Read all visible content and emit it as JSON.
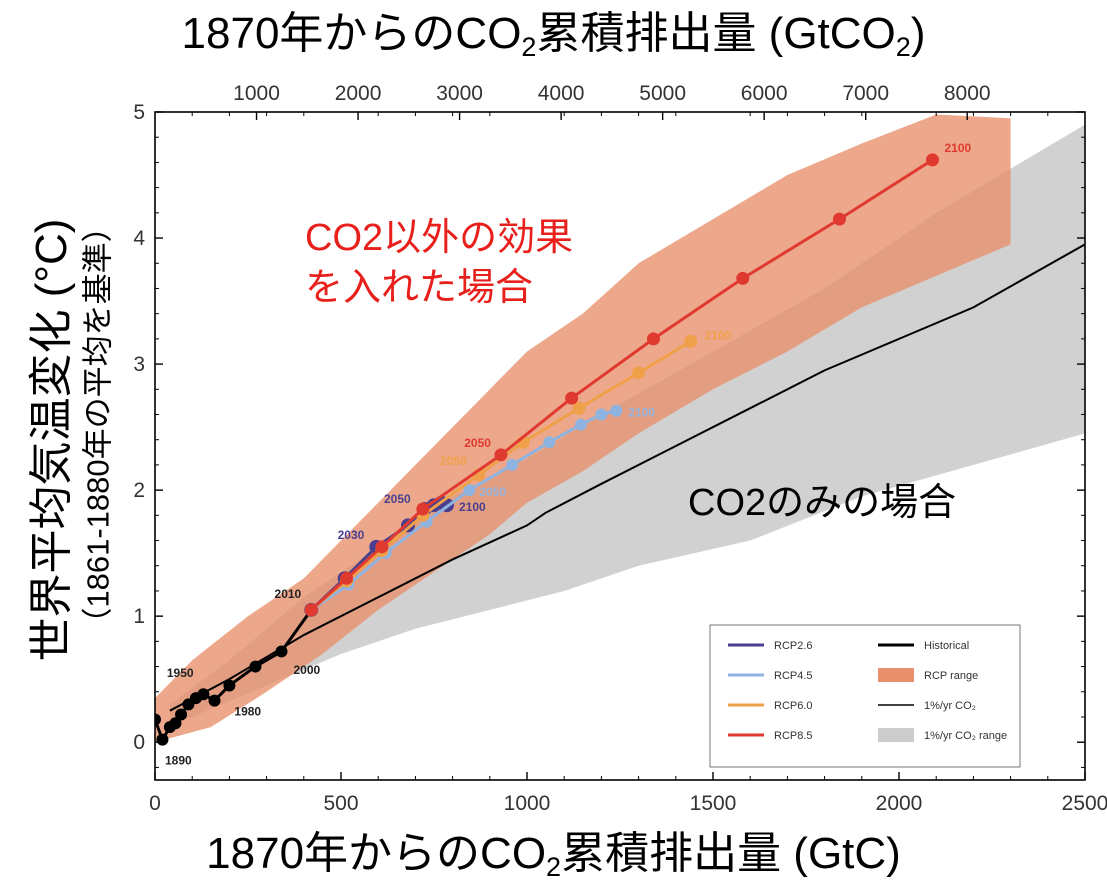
{
  "chart_data": {
    "type": "line",
    "title_top_axis": "1870年からのCO₂累積排出量 (GtCO₂)",
    "title_top_axis_parts": {
      "pre": "1870年からのCO",
      "sub": "2",
      "post": "累積排出量 (GtCO",
      "sub2": "2",
      "end": ")"
    },
    "xlabel_parts": {
      "pre": "1870年からのCO",
      "sub": "2",
      "post": "累積排出量 (GtC)"
    },
    "xlabel": "1870年からのCO₂累積排出量 (GtC)",
    "ylabel": "世界平均気温変化 (°C)",
    "ylabel_sub": "（1861-1880年の平均を基準）",
    "xlim": [
      0,
      2500
    ],
    "ylim": [
      -0.3,
      5
    ],
    "x_ticks": [
      "0",
      "500",
      "1000",
      "1500",
      "2000",
      "2500"
    ],
    "x_tick_values": [
      0,
      500,
      1000,
      1500,
      2000,
      2500
    ],
    "top_ticks": [
      "1000",
      "2000",
      "3000",
      "4000",
      "5000",
      "6000",
      "7000",
      "8000"
    ],
    "top_tick_values_gtco2": [
      1000,
      2000,
      3000,
      4000,
      5000,
      6000,
      7000,
      8000
    ],
    "y_ticks": [
      "0",
      "1",
      "2",
      "3",
      "4",
      "5"
    ],
    "y_tick_values": [
      0,
      1,
      2,
      3,
      4,
      5
    ],
    "annotations": [
      {
        "text": "CO2以外の効果",
        "color": "#e8201c"
      },
      {
        "text": "を入れた場合",
        "color": "#e8201c"
      },
      {
        "text": "CO2のみの場合",
        "color": "#000000"
      }
    ],
    "year_labels": {
      "historical": [
        "1890",
        "1950",
        "1980",
        "2000",
        "2010"
      ],
      "rcp26": [
        "2030",
        "2050",
        "2100"
      ],
      "rcp45": [
        "2050",
        "2100"
      ],
      "rcp60": [
        "2050",
        "2100"
      ],
      "rcp85": [
        "2050",
        "2100"
      ]
    },
    "legend": {
      "placement": "bottom-right",
      "items": [
        {
          "label": "RCP2.6",
          "kind": "line",
          "color": "#4a3f8f"
        },
        {
          "label": "Historical",
          "kind": "line",
          "color": "#000000"
        },
        {
          "label": "RCP4.5",
          "kind": "line",
          "color": "#8fb3e0"
        },
        {
          "label": "RCP range",
          "kind": "patch",
          "color": "#e8906c"
        },
        {
          "label": "RCP6.0",
          "kind": "line",
          "color": "#f0a048"
        },
        {
          "label": "1%/yr CO₂",
          "kind": "thinline",
          "color": "#000000"
        },
        {
          "label": "RCP8.5",
          "kind": "line",
          "color": "#e03a30"
        },
        {
          "label": "1%/yr CO₂ range",
          "kind": "patch",
          "color": "#cccccc"
        }
      ]
    },
    "series": [
      {
        "name": "Historical",
        "color": "#000000",
        "x": [
          0,
          20,
          40,
          55,
          70,
          90,
          110,
          130,
          160,
          200,
          270,
          340,
          420
        ],
        "y": [
          0.18,
          0.02,
          0.12,
          0.15,
          0.22,
          0.3,
          0.35,
          0.38,
          0.33,
          0.45,
          0.6,
          0.72,
          1.05
        ]
      },
      {
        "name": "RCP2.6",
        "color": "#4a3f8f",
        "x": [
          420,
          510,
          595,
          680,
          725,
          750,
          770,
          785
        ],
        "y": [
          1.05,
          1.3,
          1.55,
          1.72,
          1.85,
          1.88,
          1.9,
          1.88
        ]
      },
      {
        "name": "RCP4.5",
        "color": "#8fb3e0",
        "x": [
          420,
          520,
          620,
          730,
          845,
          960,
          1060,
          1145,
          1200,
          1240
        ],
        "y": [
          1.05,
          1.25,
          1.5,
          1.75,
          2.0,
          2.2,
          2.38,
          2.52,
          2.6,
          2.63
        ]
      },
      {
        "name": "RCP6.0",
        "color": "#f0a048",
        "x": [
          420,
          515,
          610,
          720,
          870,
          990,
          1140,
          1300,
          1440
        ],
        "y": [
          1.05,
          1.28,
          1.52,
          1.8,
          2.12,
          2.38,
          2.65,
          2.93,
          3.18
        ]
      },
      {
        "name": "RCP8.5",
        "color": "#e03a30",
        "x": [
          420,
          515,
          610,
          720,
          930,
          1120,
          1340,
          1580,
          1840,
          2090
        ],
        "y": [
          1.05,
          1.3,
          1.55,
          1.85,
          2.28,
          2.73,
          3.2,
          3.68,
          4.15,
          4.62
        ]
      },
      {
        "name": "1%/yr CO₂",
        "color": "#000000",
        "x": [
          40,
          200,
          400,
          600,
          800,
          1000,
          1050,
          1200,
          1400,
          1600,
          1800,
          2000,
          2200,
          2500
        ],
        "y": [
          0.25,
          0.5,
          0.85,
          1.15,
          1.45,
          1.72,
          1.82,
          2.05,
          2.35,
          2.65,
          2.95,
          3.2,
          3.45,
          3.95
        ]
      }
    ],
    "bands": [
      {
        "name": "1%/yr CO₂ range",
        "color": "#cccccc",
        "upper_x": [
          40,
          200,
          400,
          600,
          800,
          1000,
          1200,
          1500,
          1800,
          2100,
          2500
        ],
        "upper_y": [
          0.3,
          0.65,
          1.15,
          1.55,
          1.95,
          2.25,
          2.6,
          3.1,
          3.6,
          4.2,
          4.9
        ],
        "lower_x": [
          2500,
          2200,
          1900,
          1600,
          1300,
          1100,
          900,
          700,
          500,
          300,
          100,
          40
        ],
        "lower_y": [
          2.45,
          2.2,
          1.95,
          1.6,
          1.4,
          1.2,
          1.05,
          0.9,
          0.7,
          0.45,
          0.2,
          0.15
        ]
      },
      {
        "name": "RCP range",
        "color": "#e8906c",
        "upper_x": [
          0,
          100,
          250,
          400,
          550,
          700,
          850,
          1000,
          1150,
          1300,
          1500,
          1700,
          1900,
          2100,
          2300
        ],
        "upper_y": [
          0.35,
          0.65,
          1.0,
          1.3,
          1.75,
          2.2,
          2.65,
          3.1,
          3.4,
          3.8,
          4.15,
          4.5,
          4.75,
          4.98,
          4.95
        ],
        "lower_x": [
          2300,
          2100,
          1900,
          1700,
          1500,
          1300,
          1150,
          1000,
          900,
          750,
          600,
          450,
          300,
          150,
          0
        ],
        "lower_y": [
          3.95,
          3.7,
          3.45,
          3.1,
          2.8,
          2.45,
          2.15,
          1.9,
          1.65,
          1.35,
          1.05,
          0.7,
          0.4,
          0.12,
          0.0
        ]
      }
    ]
  }
}
